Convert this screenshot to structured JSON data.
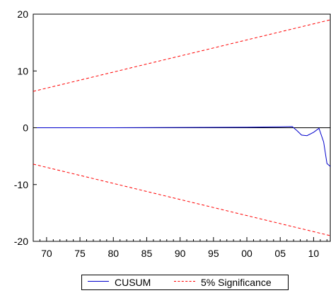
{
  "chart_data": {
    "type": "line",
    "title": "",
    "xlabel": "",
    "ylabel": "",
    "xlim": [
      1968,
      2012.5
    ],
    "ylim": [
      -20,
      20
    ],
    "grid": false,
    "legend_position": "bottom",
    "x_ticks": [
      1970,
      1975,
      1980,
      1985,
      1990,
      1995,
      2000,
      2005,
      2010
    ],
    "x_tick_labels": [
      "70",
      "75",
      "80",
      "85",
      "90",
      "95",
      "00",
      "05",
      "10"
    ],
    "y_ticks": [
      -20,
      -10,
      0,
      10,
      20
    ],
    "y_tick_labels": [
      "-20",
      "-10",
      "0",
      "10",
      "20"
    ],
    "series": [
      {
        "name": "CUSUM",
        "color": "#0000cc",
        "style": "solid",
        "x": [
          1968,
          1980,
          1990,
          2000,
          2005,
          2006.8,
          2007.5,
          2008.2,
          2009,
          2010,
          2010.8,
          2011.5,
          2012,
          2012.5
        ],
        "y": [
          0,
          0,
          0.05,
          0.1,
          0.15,
          0.2,
          -0.5,
          -1.3,
          -1.4,
          -0.8,
          -0.1,
          -2.5,
          -6.3,
          -6.8
        ]
      },
      {
        "name": "5% Significance",
        "color": "#ff0000",
        "style": "dashed",
        "x": [
          1968,
          2012.5
        ],
        "y": [
          6.4,
          19
        ]
      },
      {
        "name": "",
        "color": "#ff0000",
        "style": "dashed",
        "x": [
          1968,
          2012.5
        ],
        "y": [
          -6.4,
          -19
        ]
      }
    ]
  },
  "legend": {
    "items": [
      {
        "label": "CUSUM",
        "color": "#0000cc",
        "style": "solid"
      },
      {
        "label": "5% Significance",
        "color": "#ff0000",
        "style": "dashed"
      }
    ]
  }
}
